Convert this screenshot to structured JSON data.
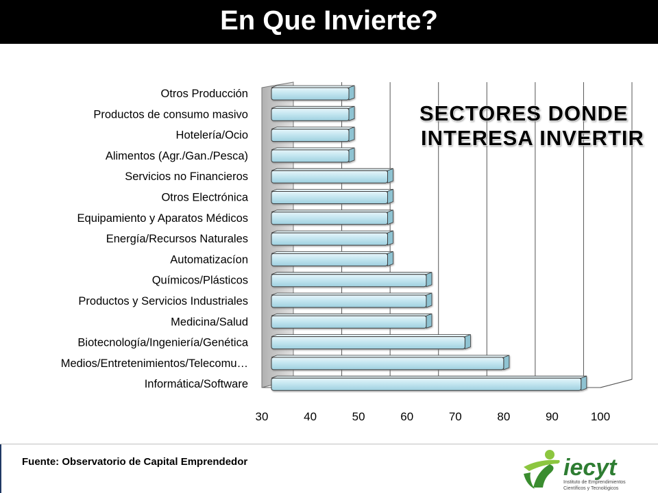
{
  "title": "En Que Invierte?",
  "chart_data": {
    "type": "bar",
    "orientation": "horizontal",
    "categories": [
      "Otros Producción",
      "Productos de consumo masivo",
      "Hotelería/Ocio",
      "Alimentos (Agr./Gan./Pesca)",
      "Servicios no Financieros",
      "Otros Electrónica",
      "Equipamiento y Aparatos Médicos",
      "Energía/Recursos Naturales",
      "Automatizacíon",
      "Químicos/Plásticos",
      "Productos y Servicios Industriales",
      "Medicina/Salud",
      "Biotecnología/Ingeniería/Genética",
      "Medios/Entretenimientos/Telecomu…",
      "Informática/Software"
    ],
    "values": [
      48,
      48,
      48,
      48,
      56,
      56,
      56,
      56,
      56,
      64,
      64,
      64,
      72,
      80,
      96
    ],
    "xlim": [
      30,
      100
    ],
    "xticks": [
      "30",
      "40",
      "50",
      "60",
      "70",
      "80",
      "90",
      "100"
    ],
    "grid": true,
    "annotation": [
      "SECTORES DONDE",
      "INTERESA INVERTIR"
    ],
    "bar_color": "#bfe3ee",
    "bar_edge_color": "#3a3a3a"
  },
  "footer": {
    "source": "Fuente: Observatorio de Capital Emprendedor"
  },
  "logo": {
    "text": "iecyt",
    "subtext_1": "Instituto de Emprendimientos",
    "subtext_2": "Científicos y Tecnológicos"
  }
}
